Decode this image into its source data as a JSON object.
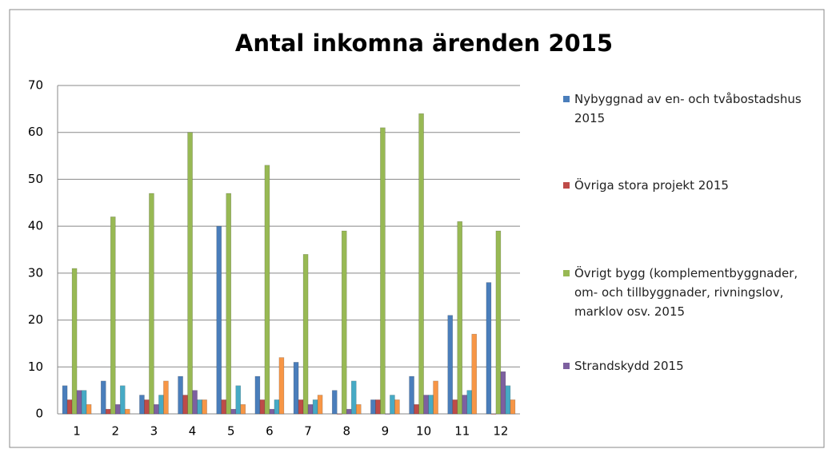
{
  "chart_data": {
    "type": "bar",
    "title": "Antal inkomna ärenden 2015",
    "categories": [
      "1",
      "2",
      "3",
      "4",
      "5",
      "6",
      "7",
      "8",
      "9",
      "10",
      "11",
      "12"
    ],
    "series": [
      {
        "name": "Nybyggnad av en- och tvåbostadshus 2015",
        "color": "#4a7ebb",
        "values": [
          6,
          7,
          4,
          8,
          40,
          8,
          11,
          5,
          3,
          8,
          21,
          28
        ]
      },
      {
        "name": "Övriga stora projekt 2015",
        "color": "#be4b48",
        "values": [
          3,
          1,
          3,
          4,
          3,
          3,
          3,
          0,
          3,
          2,
          3,
          0
        ]
      },
      {
        "name": "Övrigt bygg (komplementbyggnader, om- och tillbyggnader, rivningslov, marklov osv. 2015",
        "color": "#98b954",
        "values": [
          31,
          42,
          47,
          60,
          47,
          53,
          34,
          39,
          61,
          64,
          41,
          39
        ]
      },
      {
        "name": "Strandskydd 2015",
        "color": "#7d60a0",
        "values": [
          5,
          2,
          2,
          5,
          1,
          1,
          2,
          1,
          0,
          4,
          4,
          9
        ]
      },
      {
        "color": "#46aac5",
        "values": [
          5,
          6,
          4,
          3,
          6,
          3,
          3,
          7,
          4,
          4,
          5,
          6
        ]
      },
      {
        "color": "#f79646",
        "values": [
          2,
          1,
          7,
          3,
          2,
          12,
          4,
          2,
          3,
          7,
          17,
          3
        ]
      }
    ],
    "ylim": [
      0,
      70
    ],
    "yticks": [
      0,
      10,
      20,
      30,
      40,
      50,
      60,
      70
    ],
    "grid": true,
    "legend": "right"
  }
}
